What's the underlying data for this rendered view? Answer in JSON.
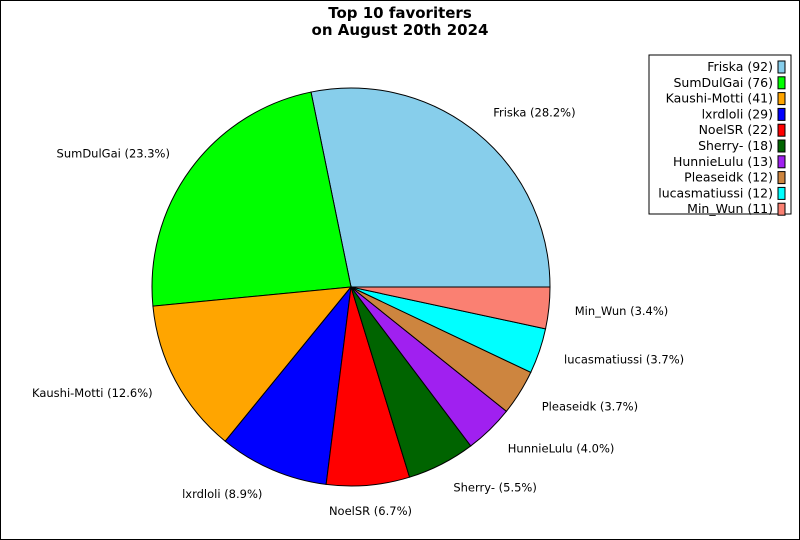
{
  "chart_data": {
    "type": "pie",
    "title": [
      "Top 10 favoriters",
      "on August 20th 2024"
    ],
    "legend_position": "top-right",
    "start_angle_deg": 0,
    "direction": "counterclockwise",
    "slices": [
      {
        "name": "Friska",
        "value": 92,
        "percent_label": "Friska (28.2%)",
        "legend_label": "Friska (92)",
        "color": "#87ceeb"
      },
      {
        "name": "SumDulGai",
        "value": 76,
        "percent_label": "SumDulGai (23.3%)",
        "legend_label": "SumDulGai (76)",
        "color": "#00ff00"
      },
      {
        "name": "Kaushi-Motti",
        "value": 41,
        "percent_label": "Kaushi-Motti (12.6%)",
        "legend_label": "Kaushi-Motti (41)",
        "color": "#ffa500"
      },
      {
        "name": "lxrdloli",
        "value": 29,
        "percent_label": "lxrdloli (8.9%)",
        "legend_label": "lxrdloli (29)",
        "color": "#0000ff"
      },
      {
        "name": "NoelSR",
        "value": 22,
        "percent_label": "NoelSR (6.7%)",
        "legend_label": "NoelSR (22)",
        "color": "#ff0000"
      },
      {
        "name": "Sherry-",
        "value": 18,
        "percent_label": "Sherry- (5.5%)",
        "legend_label": "Sherry- (18)",
        "color": "#006400"
      },
      {
        "name": "HunnieLulu",
        "value": 13,
        "percent_label": "HunnieLulu (4.0%)",
        "legend_label": "HunnieLulu (13)",
        "color": "#a020f0"
      },
      {
        "name": "Pleaseidk",
        "value": 12,
        "percent_label": "Pleaseidk (3.7%)",
        "legend_label": "Pleaseidk (12)",
        "color": "#cd853f"
      },
      {
        "name": "lucasmatiussi",
        "value": 12,
        "percent_label": "lucasmatiussi (3.7%)",
        "legend_label": "lucasmatiussi (12)",
        "color": "#00ffff"
      },
      {
        "name": "Min_Wun",
        "value": 11,
        "percent_label": "Min_Wun (3.4%)",
        "legend_label": "Min_Wun (11)",
        "color": "#fa8072"
      }
    ]
  }
}
